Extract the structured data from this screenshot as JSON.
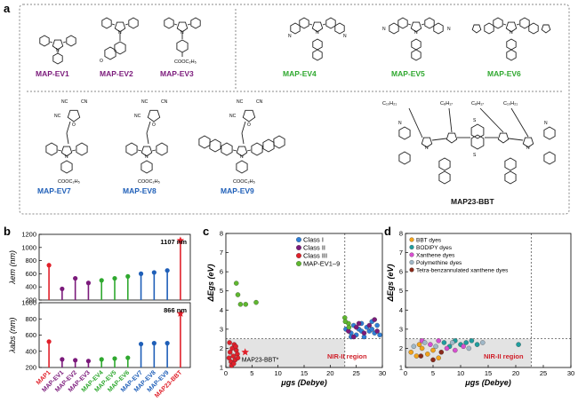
{
  "panel_labels": {
    "a": "a",
    "b": "b",
    "c": "c",
    "d": "d"
  },
  "molecules": [
    {
      "label": "MAP-EV1",
      "color": "#7b1a7b"
    },
    {
      "label": "MAP-EV2",
      "color": "#7b1a7b"
    },
    {
      "label": "MAP-EV3",
      "color": "#7b1a7b"
    },
    {
      "label": "MAP-EV4",
      "color": "#2fa82f"
    },
    {
      "label": "MAP-EV5",
      "color": "#2fa82f"
    },
    {
      "label": "MAP-EV6",
      "color": "#2fa82f"
    },
    {
      "label": "MAP-EV7",
      "color": "#1f5fb8"
    },
    {
      "label": "MAP-EV8",
      "color": "#1f5fb8"
    },
    {
      "label": "MAP-EV9",
      "color": "#1f5fb8"
    },
    {
      "label": "MAP23-BBT",
      "color": "#111111"
    }
  ],
  "struct_text": {
    "cn": "NC",
    "cn2": "CN",
    "cn3": "NC",
    "o": "O",
    "ester": "COOC₂H₅",
    "c8": "C₈H₁₇",
    "c10": "C₁₀H₂₁",
    "n": "N",
    "s": "S"
  },
  "chart_data": [
    {
      "panel": "b-top",
      "type": "bar",
      "ylabel": "λem (nm)",
      "categories": [
        "MAP1",
        "MAP-EV1",
        "MAP-EV2",
        "MAP-EV3",
        "MAP-EV4",
        "MAP-EV5",
        "MAP-EV6",
        "MAP-EV7",
        "MAP-EV8",
        "MAP-EV9",
        "MAP23-BBT"
      ],
      "values": [
        730,
        370,
        530,
        460,
        500,
        530,
        560,
        600,
        620,
        650,
        1107
      ],
      "colors": [
        "#e0202a",
        "#7b1a7b",
        "#7b1a7b",
        "#7b1a7b",
        "#2fa82f",
        "#2fa82f",
        "#2fa82f",
        "#1f5fb8",
        "#1f5fb8",
        "#1f5fb8",
        "#e0202a"
      ],
      "ylim": [
        200,
        1200
      ],
      "yticks": [
        "200",
        "400",
        "600",
        "800",
        "1000",
        "1200"
      ],
      "annotation": "1107 nm"
    },
    {
      "panel": "b-bottom",
      "type": "bar",
      "ylabel": "λabs (nm)",
      "categories": [
        "MAP1",
        "MAP-EV1",
        "MAP-EV2",
        "MAP-EV3",
        "MAP-EV4",
        "MAP-EV5",
        "MAP-EV6",
        "MAP-EV7",
        "MAP-EV8",
        "MAP-EV9",
        "MAP23-BBT"
      ],
      "values": [
        520,
        300,
        290,
        280,
        300,
        310,
        320,
        490,
        500,
        500,
        866
      ],
      "colors": [
        "#e0202a",
        "#7b1a7b",
        "#7b1a7b",
        "#7b1a7b",
        "#2fa82f",
        "#2fa82f",
        "#2fa82f",
        "#1f5fb8",
        "#1f5fb8",
        "#1f5fb8",
        "#e0202a"
      ],
      "ylim": [
        200,
        1000
      ],
      "yticks": [
        "200",
        "400",
        "600",
        "800",
        "1000"
      ],
      "annotation": "866 nm"
    },
    {
      "panel": "c",
      "type": "scatter",
      "xlabel": "μgs (Debye)",
      "ylabel": "ΔEgs (eV)",
      "xlim": [
        0,
        30
      ],
      "ylim": [
        1,
        8
      ],
      "xticks": [
        "0",
        "5",
        "10",
        "15",
        "20",
        "25",
        "30"
      ],
      "yticks": [
        "1",
        "2",
        "3",
        "4",
        "5",
        "6",
        "7",
        "8"
      ],
      "threshold_x": 22.8,
      "threshold_y": 2.5,
      "region_label": "NIR-II region",
      "point_label": "MAP23-BBT*",
      "series": [
        {
          "name": "Class I",
          "color": "#2f7fd8",
          "points": [
            [
              23,
              3.0
            ],
            [
              24,
              2.8
            ],
            [
              24.5,
              3.2
            ],
            [
              25,
              2.7
            ],
            [
              25.5,
              3.0
            ],
            [
              26,
              3.3
            ],
            [
              26.5,
              2.6
            ],
            [
              27,
              3.1
            ],
            [
              27.5,
              2.9
            ],
            [
              28,
              3.4
            ],
            [
              28.5,
              2.8
            ],
            [
              29,
              3.2
            ],
            [
              29.5,
              2.7
            ],
            [
              24,
              2.6
            ],
            [
              26,
              2.9
            ],
            [
              28,
              3.0
            ]
          ]
        },
        {
          "name": "Class II",
          "color": "#7b1a7b",
          "points": [
            [
              23.5,
              2.9
            ],
            [
              24.5,
              2.6
            ],
            [
              25.5,
              3.3
            ],
            [
              26.5,
              2.8
            ],
            [
              27.5,
              3.2
            ],
            [
              28.5,
              3.5
            ],
            [
              29,
              2.9
            ],
            [
              25,
              3.1
            ]
          ]
        },
        {
          "name": "Class III",
          "color": "#e0202a",
          "points": [
            [
              0.6,
              1.5
            ],
            [
              0.8,
              1.8
            ],
            [
              1.0,
              1.3
            ],
            [
              1.2,
              2.0
            ],
            [
              1.4,
              1.6
            ],
            [
              1.6,
              2.2
            ],
            [
              1.8,
              1.4
            ],
            [
              2.0,
              1.9
            ],
            [
              2.2,
              1.7
            ],
            [
              0.7,
              2.3
            ],
            [
              1.1,
              1.1
            ],
            [
              1.5,
              1.2
            ],
            [
              1.9,
              2.1
            ],
            [
              2.3,
              1.5
            ]
          ]
        },
        {
          "name": "MAP-EV1–9",
          "color": "#5fb82f",
          "points": [
            [
              2.0,
              5.4
            ],
            [
              2.3,
              4.8
            ],
            [
              2.8,
              4.3
            ],
            [
              3.8,
              4.3
            ],
            [
              5.8,
              4.4
            ],
            [
              22.8,
              3.6
            ],
            [
              23.5,
              3.3
            ],
            [
              22.9,
              3.4
            ],
            [
              23.6,
              3.1
            ]
          ]
        }
      ],
      "star": [
        3.7,
        1.8
      ]
    },
    {
      "panel": "d",
      "type": "scatter",
      "xlabel": "μgs (Debye)",
      "ylabel": "ΔEgs (eV)",
      "xlim": [
        0,
        30
      ],
      "ylim": [
        1,
        8
      ],
      "xticks": [
        "0",
        "5",
        "10",
        "15",
        "20",
        "25",
        "30"
      ],
      "yticks": [
        "1",
        "2",
        "3",
        "4",
        "5",
        "6",
        "7",
        "8"
      ],
      "threshold_x": 22.8,
      "threshold_y": 2.5,
      "region_label": "NIR-II region",
      "series": [
        {
          "name": "BBT dyes",
          "color": "#f2a31a",
          "points": [
            [
              1,
              1.8
            ],
            [
              2,
              1.6
            ],
            [
              3,
              2.0
            ],
            [
              4,
              1.7
            ],
            [
              5,
              1.9
            ],
            [
              2.5,
              2.2
            ],
            [
              6,
              1.5
            ]
          ]
        },
        {
          "name": "BODIPY dyes",
          "color": "#1f9e9e",
          "points": [
            [
              7,
              2.3
            ],
            [
              8,
              2.1
            ],
            [
              9,
              2.4
            ],
            [
              10,
              2.2
            ],
            [
              11,
              2.3
            ],
            [
              12,
              2.4
            ],
            [
              13,
              2.2
            ],
            [
              20.5,
              2.2
            ]
          ]
        },
        {
          "name": "Xanthene dyes",
          "color": "#d84fd0",
          "points": [
            [
              3,
              2.4
            ],
            [
              4.5,
              2.2
            ],
            [
              6,
              2.4
            ],
            [
              7.5,
              2.0
            ],
            [
              9,
              1.9
            ],
            [
              10.5,
              2.1
            ]
          ]
        },
        {
          "name": "Polymethine dyes",
          "color": "#a0b8c8",
          "points": [
            [
              1.5,
              2.1
            ],
            [
              3.5,
              2.3
            ],
            [
              5.5,
              2.1
            ],
            [
              8.5,
              2.3
            ],
            [
              11.5,
              2.0
            ],
            [
              14,
              2.3
            ]
          ]
        },
        {
          "name": "Tetra-benzannulated xanthene dyes",
          "color": "#8a2a1a",
          "points": [
            [
              2.8,
              1.6
            ],
            [
              5,
              1.4
            ],
            [
              6.5,
              1.8
            ]
          ]
        }
      ]
    }
  ]
}
